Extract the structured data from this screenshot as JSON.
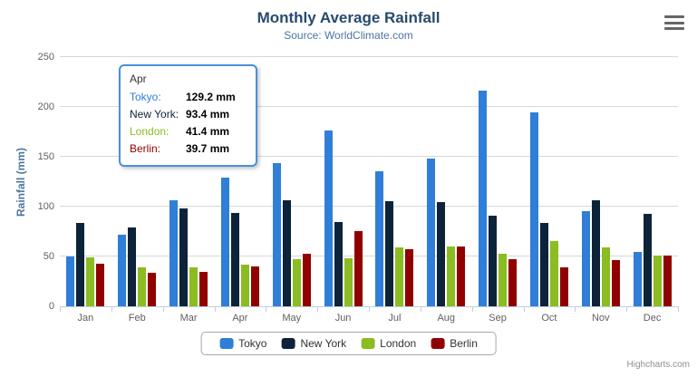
{
  "chart_data": {
    "type": "bar",
    "title": "Monthly Average Rainfall",
    "subtitle": "Source: WorldClimate.com",
    "xlabel": "",
    "ylabel": "Rainfall (mm)",
    "ylim": [
      0,
      250
    ],
    "yticks": [
      0,
      50,
      100,
      150,
      200,
      250
    ],
    "grid": true,
    "legend_position": "bottom",
    "categories": [
      "Jan",
      "Feb",
      "Mar",
      "Apr",
      "May",
      "Jun",
      "Jul",
      "Aug",
      "Sep",
      "Oct",
      "Nov",
      "Dec"
    ],
    "series": [
      {
        "name": "Tokyo",
        "color": "#2f7ed8",
        "values": [
          49.9,
          71.5,
          106.4,
          129.2,
          144.0,
          176.0,
          135.6,
          148.5,
          216.4,
          194.1,
          95.6,
          54.4
        ]
      },
      {
        "name": "New York",
        "color": "#0d233a",
        "values": [
          83.6,
          78.8,
          98.5,
          93.4,
          106.0,
          84.5,
          105.0,
          104.3,
          91.2,
          83.5,
          106.6,
          92.3
        ]
      },
      {
        "name": "London",
        "color": "#8bbc21",
        "values": [
          48.9,
          38.8,
          39.3,
          41.4,
          47.0,
          48.3,
          59.0,
          59.6,
          52.4,
          65.2,
          59.3,
          51.2
        ]
      },
      {
        "name": "Berlin",
        "color": "#910000",
        "values": [
          42.4,
          33.2,
          34.5,
          39.7,
          52.6,
          75.5,
          57.4,
          60.4,
          47.6,
          39.1,
          46.8,
          51.1
        ]
      }
    ]
  },
  "tooltip": {
    "header": "Apr",
    "border_color": "#4a90d9",
    "rows": [
      {
        "label": "Tokyo:",
        "value": "129.2 mm",
        "color": "#2f7ed8"
      },
      {
        "label": "New York:",
        "value": "93.4 mm",
        "color": "#0d233a"
      },
      {
        "label": "London:",
        "value": "41.4 mm",
        "color": "#8bbc21"
      },
      {
        "label": "Berlin:",
        "value": "39.7 mm",
        "color": "#910000"
      }
    ]
  },
  "credits": {
    "label": "Highcharts.com"
  },
  "colors": {
    "title": "#274b6d",
    "subtitle": "#4d759e",
    "axis_labels": "#606060",
    "gridline": "#d8d8d8",
    "axis_line": "#c0d0e0",
    "menu_icon": "#666666"
  }
}
